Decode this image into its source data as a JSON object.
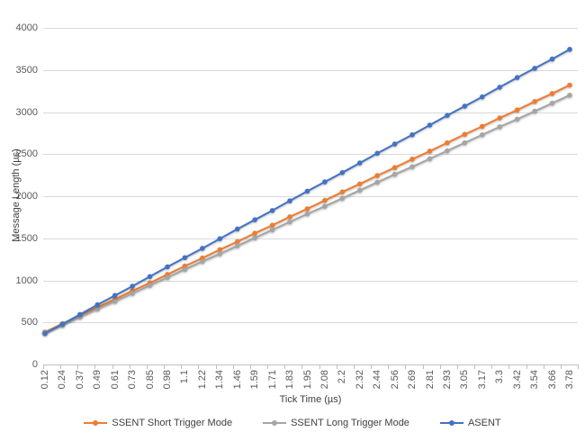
{
  "chart_data": {
    "type": "line",
    "title": "",
    "xlabel": "Tick Time (µs)",
    "ylabel": "Message Length (µs)",
    "x_categories": [
      "0.12",
      "0.24",
      "0.37",
      "0.49",
      "0.61",
      "0.73",
      "0.85",
      "0.98",
      "1.1",
      "1.22",
      "1.34",
      "1.46",
      "1.59",
      "1.71",
      "1.83",
      "1.95",
      "2.08",
      "2.2",
      "2.32",
      "2.44",
      "2.56",
      "2.69",
      "2.81",
      "2.93",
      "3.05",
      "3.17",
      "3.3",
      "3.42",
      "3.54",
      "3.66",
      "3.78"
    ],
    "y_ticks": [
      0,
      500,
      1000,
      1500,
      2000,
      2500,
      3000,
      3500,
      4000
    ],
    "ylim": [
      0,
      4000
    ],
    "grid": "horizontal",
    "legend_position": "bottom",
    "series": [
      {
        "name": "SSENT Short Trigger Mode",
        "color": "#ED7D31",
        "marker": "circle",
        "values": [
          385,
          485,
          580,
          680,
          775,
          875,
          970,
          1070,
          1170,
          1265,
          1365,
          1460,
          1560,
          1655,
          1755,
          1850,
          1950,
          2050,
          2145,
          2245,
          2340,
          2440,
          2535,
          2635,
          2735,
          2830,
          2930,
          3025,
          3125,
          3220,
          3320
        ]
      },
      {
        "name": "SSENT Long Trigger Mode",
        "color": "#A5A5A5",
        "marker": "circle",
        "values": [
          375,
          470,
          565,
          660,
          750,
          845,
          940,
          1035,
          1130,
          1225,
          1315,
          1410,
          1505,
          1600,
          1695,
          1790,
          1880,
          1975,
          2070,
          2165,
          2260,
          2350,
          2445,
          2540,
          2635,
          2730,
          2825,
          2915,
          3010,
          3105,
          3200
        ]
      },
      {
        "name": "ASENT",
        "color": "#4472C4",
        "marker": "circle",
        "values": [
          370,
          480,
          595,
          710,
          820,
          930,
          1045,
          1160,
          1270,
          1380,
          1495,
          1610,
          1720,
          1830,
          1945,
          2060,
          2170,
          2280,
          2395,
          2510,
          2620,
          2730,
          2845,
          2960,
          3070,
          3180,
          3295,
          3410,
          3520,
          3630,
          3745
        ]
      }
    ],
    "colors": {
      "gridline": "#D9D9D9",
      "axis_line": "#BFBFBF",
      "tick_text": "#595959",
      "title_text": "#404040"
    }
  }
}
